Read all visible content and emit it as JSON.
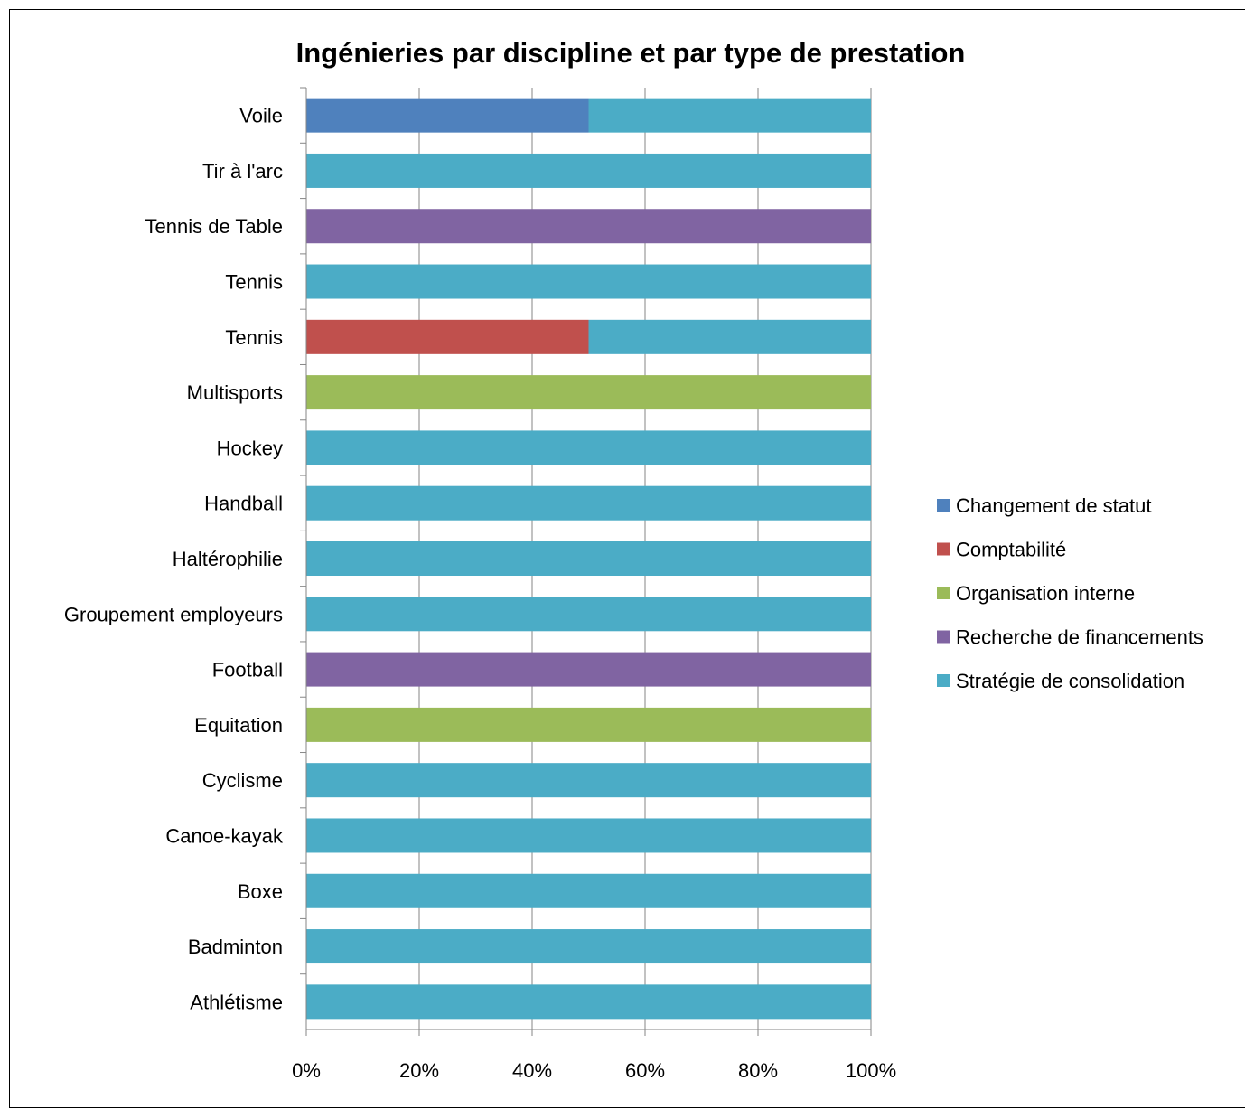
{
  "chart_data": {
    "type": "bar",
    "orientation": "horizontal",
    "stacked": "percent",
    "title": "Ingénieries par discipline et par type de prestation",
    "xlabel": "",
    "ylabel": "",
    "xlim": [
      0,
      100
    ],
    "x_ticks": [
      "0%",
      "20%",
      "40%",
      "60%",
      "80%",
      "100%"
    ],
    "grid": true,
    "legend_position": "right",
    "categories": [
      "Athlétisme",
      "Badminton",
      "Boxe",
      "Canoe-kayak",
      "Cyclisme",
      "Equitation",
      "Football",
      "Groupement employeurs",
      "Haltérophilie",
      "Handball",
      "Hockey",
      "Multisports",
      "Tennis",
      "Tennis ",
      "Tennis de Table",
      "Tir à l'arc",
      "Voile"
    ],
    "series": [
      {
        "name": "Changement de statut",
        "color": "#4F81BD",
        "values": [
          0,
          0,
          0,
          0,
          0,
          0,
          0,
          0,
          0,
          0,
          0,
          0,
          0,
          0,
          0,
          0,
          50
        ]
      },
      {
        "name": "Comptabilité",
        "color": "#C0504D",
        "values": [
          0,
          0,
          0,
          0,
          0,
          0,
          0,
          0,
          0,
          0,
          0,
          0,
          50,
          0,
          0,
          0,
          0
        ]
      },
      {
        "name": "Organisation interne",
        "color": "#9BBB59",
        "values": [
          0,
          0,
          0,
          0,
          0,
          100,
          0,
          0,
          0,
          0,
          0,
          100,
          0,
          0,
          0,
          0,
          0
        ]
      },
      {
        "name": "Recherche de financements",
        "color": "#8064A2",
        "values": [
          0,
          0,
          0,
          0,
          0,
          0,
          100,
          0,
          0,
          0,
          0,
          0,
          0,
          0,
          100,
          0,
          0
        ]
      },
      {
        "name": "Stratégie de consolidation",
        "color": "#4BACC6",
        "values": [
          100,
          100,
          100,
          100,
          100,
          0,
          0,
          100,
          100,
          100,
          100,
          0,
          50,
          100,
          0,
          100,
          50
        ]
      }
    ]
  }
}
